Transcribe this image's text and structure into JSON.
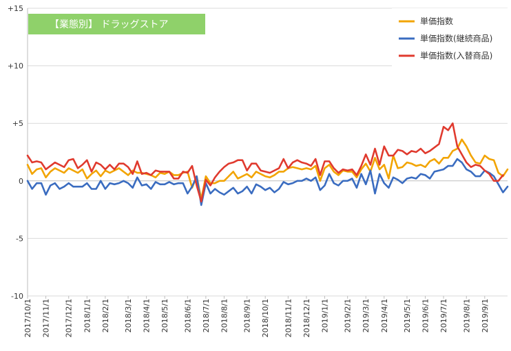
{
  "chart_data": {
    "type": "line",
    "title": "【業態別】 ドラッグストア",
    "ylim": [
      -10,
      15
    ],
    "yticks": [
      {
        "value": 15,
        "label": "+15"
      },
      {
        "value": 10,
        "label": "+10"
      },
      {
        "value": 5,
        "label": "+5"
      },
      {
        "value": 0,
        "label": "0"
      },
      {
        "value": -5,
        "label": "-5"
      },
      {
        "value": -10,
        "label": "-10"
      }
    ],
    "grid": "horizontal",
    "legend_position": "top-right",
    "xlabels": [
      "2017/10/1",
      "2017/11/1",
      "2017/12/1",
      "2018/1/1",
      "2018/2/1",
      "2018/3/1",
      "2018/4/1",
      "2018/5/1",
      "2018/6/1",
      "2018/7/1",
      "2018/8/1",
      "2018/9/1",
      "2018/10/1",
      "2018/11/1",
      "2018/12/1",
      "2019/1/1",
      "2019/2/1",
      "2019/3/1",
      "2019/4/1",
      "2019/5/1",
      "2019/6/1",
      "2019/7/1",
      "2019/8/1",
      "2019/9/1"
    ],
    "label_indices": [
      0,
      4,
      9,
      13,
      17,
      22,
      26,
      30,
      35,
      39,
      43,
      48,
      52,
      57,
      61,
      65,
      70,
      74,
      78,
      83,
      87,
      91,
      96,
      100
    ],
    "series": [
      {
        "name": "単価指数",
        "color": "#f2a400",
        "values": [
          1.4,
          0.6,
          1.0,
          1.1,
          0.3,
          0.8,
          1.1,
          0.9,
          0.7,
          1.1,
          0.9,
          0.7,
          1.0,
          0.2,
          0.6,
          0.9,
          0.4,
          0.9,
          0.7,
          0.9,
          1.1,
          0.8,
          0.5,
          0.9,
          0.7,
          0.7,
          0.6,
          0.5,
          0.3,
          0.7,
          0.6,
          0.8,
          0.5,
          0.5,
          0.7,
          0.8,
          -0.6,
          0.4,
          -1.6,
          0.4,
          -0.2,
          -0.2,
          0.0,
          0.0,
          0.4,
          0.8,
          0.2,
          0.4,
          0.6,
          0.3,
          0.8,
          0.6,
          0.4,
          0.3,
          0.5,
          0.8,
          0.8,
          1.1,
          1.2,
          1.1,
          1.0,
          1.1,
          1.0,
          1.3,
          0.0,
          1.1,
          1.4,
          0.8,
          0.5,
          0.9,
          0.8,
          0.8,
          0.3,
          1.0,
          1.5,
          0.8,
          2.0,
          1.0,
          1.4,
          0.2,
          2.2,
          1.1,
          1.2,
          1.6,
          1.5,
          1.3,
          1.4,
          1.2,
          1.7,
          1.9,
          1.5,
          2.0,
          2.0,
          2.6,
          2.8,
          3.6,
          3.0,
          2.2,
          1.6,
          1.5,
          2.2,
          1.9,
          1.8,
          0.7,
          0.4,
          1.0
        ]
      },
      {
        "name": "単価指数(継続商品)",
        "color": "#3a6cc0",
        "values": [
          0.0,
          -0.7,
          -0.2,
          -0.2,
          -1.2,
          -0.4,
          -0.2,
          -0.7,
          -0.5,
          -0.2,
          -0.5,
          -0.5,
          -0.5,
          -0.2,
          -0.7,
          -0.7,
          0.0,
          -0.7,
          -0.2,
          -0.3,
          -0.2,
          0.0,
          -0.2,
          -0.6,
          0.3,
          -0.4,
          -0.3,
          -0.7,
          -0.1,
          -0.3,
          -0.3,
          -0.1,
          -0.3,
          -0.2,
          -0.2,
          -1.1,
          -0.5,
          0.4,
          -2.1,
          -0.2,
          -1.1,
          -0.7,
          -1.0,
          -1.2,
          -0.9,
          -0.6,
          -1.1,
          -0.9,
          -0.5,
          -1.1,
          -0.3,
          -0.5,
          -0.8,
          -0.6,
          -1.0,
          -0.7,
          -0.1,
          -0.3,
          -0.2,
          0.0,
          0.0,
          0.2,
          0.0,
          0.3,
          -0.8,
          -0.4,
          0.6,
          -0.2,
          -0.4,
          0.0,
          0.0,
          0.2,
          -0.6,
          0.6,
          -0.3,
          0.9,
          -1.1,
          0.6,
          -0.2,
          -0.6,
          0.3,
          0.1,
          -0.2,
          0.2,
          0.3,
          0.2,
          0.6,
          0.5,
          0.2,
          0.8,
          0.9,
          1.0,
          1.3,
          1.3,
          1.9,
          1.6,
          1.0,
          0.8,
          0.4,
          0.4,
          0.9,
          0.7,
          0.4,
          -0.3,
          -1.0,
          -0.5
        ]
      },
      {
        "name": "単価指数(入替商品)",
        "color": "#e03a2e",
        "values": [
          2.2,
          1.6,
          1.7,
          1.6,
          1.0,
          1.3,
          1.6,
          1.4,
          1.2,
          1.8,
          1.9,
          1.1,
          1.4,
          1.8,
          0.8,
          1.6,
          1.4,
          1.0,
          1.4,
          1.0,
          1.5,
          1.5,
          1.2,
          0.6,
          1.7,
          0.6,
          0.7,
          0.5,
          0.9,
          0.8,
          0.8,
          0.8,
          0.2,
          0.2,
          0.8,
          0.7,
          1.3,
          -0.4,
          -1.8,
          0.1,
          -0.4,
          0.3,
          0.8,
          1.2,
          1.5,
          1.6,
          1.8,
          1.8,
          0.9,
          1.5,
          1.5,
          0.9,
          0.8,
          0.7,
          0.9,
          1.1,
          1.9,
          1.1,
          1.6,
          1.8,
          1.6,
          1.5,
          1.3,
          1.9,
          0.5,
          1.7,
          1.7,
          1.1,
          0.7,
          1.0,
          0.9,
          1.0,
          0.5,
          1.3,
          2.3,
          1.4,
          2.8,
          1.4,
          3.0,
          2.2,
          2.2,
          2.7,
          2.6,
          2.3,
          2.6,
          2.5,
          2.8,
          2.4,
          2.6,
          2.9,
          3.2,
          4.7,
          4.4,
          5.0,
          3.0,
          2.3,
          1.6,
          1.2,
          1.4,
          1.3,
          0.9,
          0.6,
          0.0,
          0.0,
          0.5
        ]
      }
    ]
  }
}
